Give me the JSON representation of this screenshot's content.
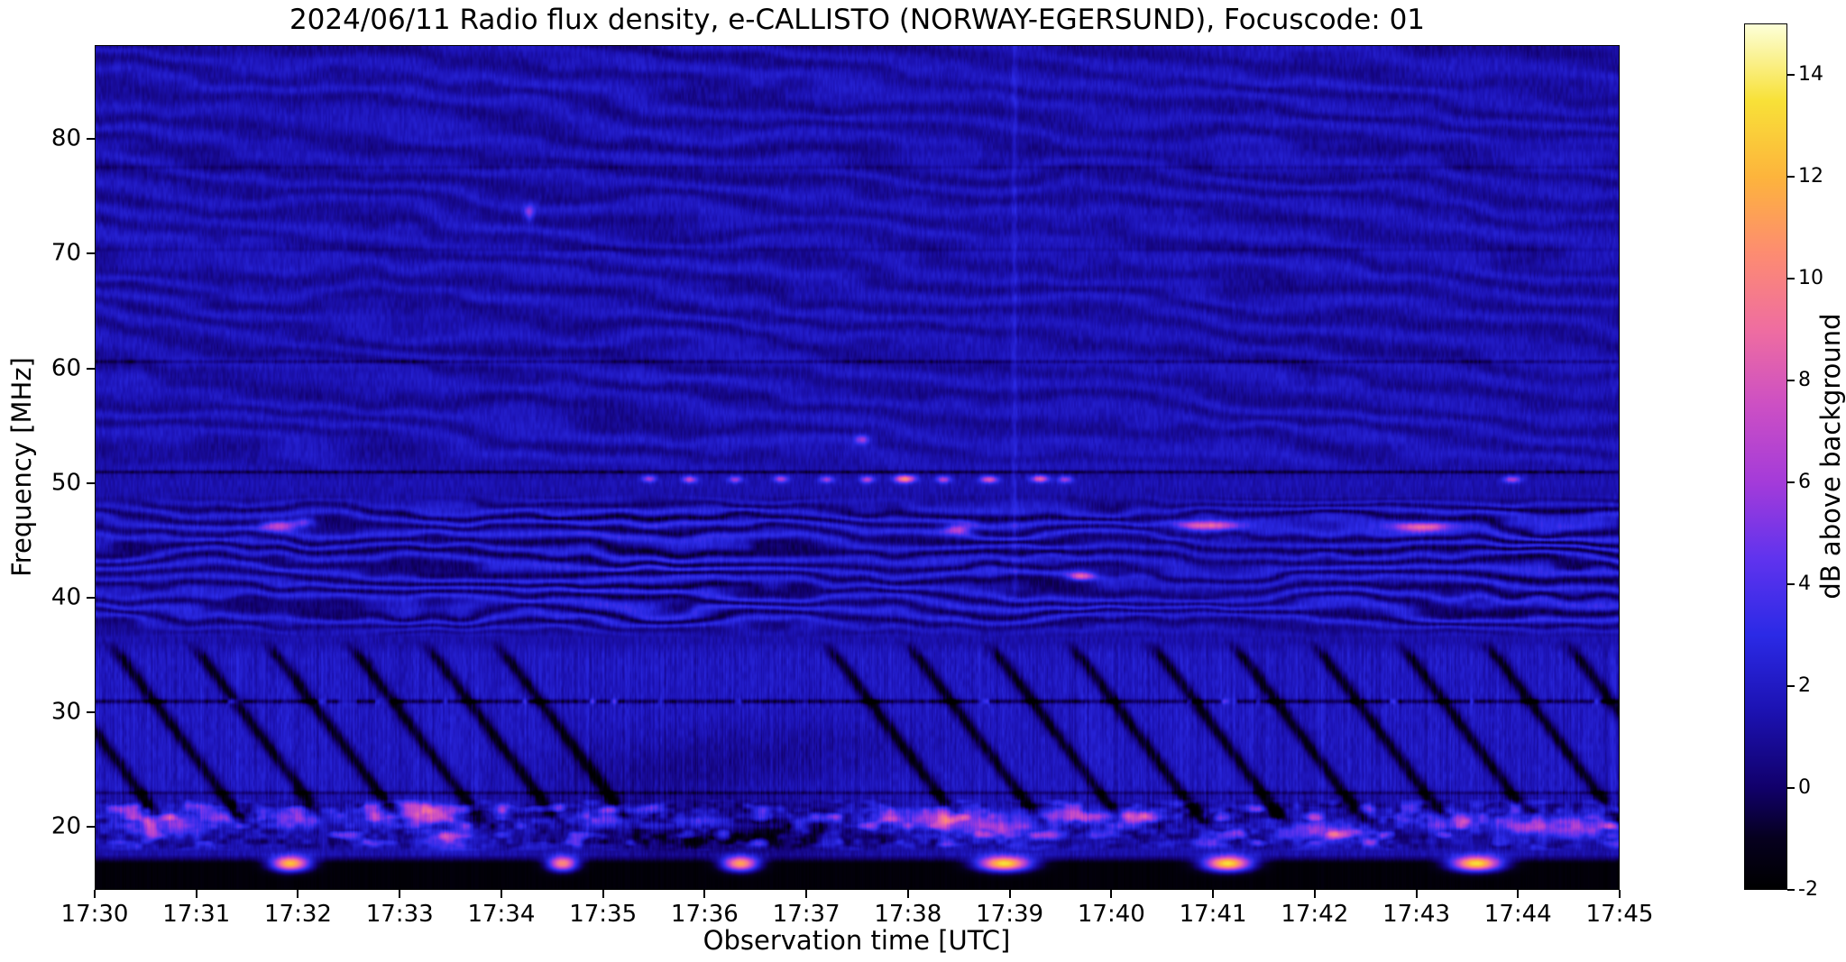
{
  "chart_data": {
    "type": "heatmap",
    "title": "2024/06/11  Radio flux density, e-CALLISTO (NORWAY-EGERSUND), Focuscode: 01",
    "xlabel": "Observation time [UTC]",
    "ylabel": "Frequency [MHz]",
    "x_tick_labels": [
      "17:30",
      "17:31",
      "17:32",
      "17:33",
      "17:34",
      "17:35",
      "17:36",
      "17:37",
      "17:38",
      "17:39",
      "17:40",
      "17:41",
      "17:42",
      "17:43",
      "17:44",
      "17:45"
    ],
    "x_range_minutes": [
      0,
      15
    ],
    "y_tick_values_mhz": [
      20,
      30,
      40,
      50,
      60,
      70,
      80
    ],
    "y_range_mhz": [
      14.5,
      88.2
    ],
    "grid": false,
    "colorbar": {
      "label": "dB above background",
      "tick_values": [
        14,
        12,
        10,
        8,
        6,
        4,
        2,
        0,
        -2
      ],
      "vmin": -2,
      "vmax": 15,
      "colormap": "gnuplot2-like",
      "stops": [
        [
          -2,
          "#000000"
        ],
        [
          -1,
          "#06001f"
        ],
        [
          0,
          "#11006b"
        ],
        [
          1.5,
          "#1c12b2"
        ],
        [
          3,
          "#2b2ae6"
        ],
        [
          4.5,
          "#6033ee"
        ],
        [
          6,
          "#a43bd9"
        ],
        [
          7.5,
          "#cc4fc4"
        ],
        [
          9,
          "#ef6da0"
        ],
        [
          10.5,
          "#fd8c71"
        ],
        [
          12,
          "#fdb43c"
        ],
        [
          13.5,
          "#f8e138"
        ],
        [
          15,
          "#fcffd8"
        ]
      ]
    },
    "spectrogram_model": {
      "base_level_db": 1.35,
      "grain_amp": 0.9,
      "band_bright": {
        "f_lo": 22.6,
        "f_hi": 36.0,
        "add": 0.55
      },
      "low_band": {
        "f_lo": 17.8,
        "f_hi": 22.4,
        "base_add": -0.35,
        "blotch_threshold": 0.52,
        "blotch_gain": 9,
        "dark_mod": 2.5
      },
      "stripe_amp": 1.0,
      "stripe_band_top_mhz": 36.5,
      "row_texture_amp": 0.45,
      "dark_lines": [
        {
          "f": 60.6,
          "w": 0.18,
          "depth": 1.5
        },
        {
          "f": 50.95,
          "w": 0.16,
          "depth": 2.2
        },
        {
          "f": 30.9,
          "w": 0.2,
          "depth": 2.8
        },
        {
          "f": 22.9,
          "w": 0.16,
          "depth": 1.6
        },
        {
          "f": 77.6,
          "w": 0.2,
          "depth": 0.7
        },
        {
          "f": 70.4,
          "w": 0.2,
          "depth": 0.6
        }
      ],
      "fringe_low": {
        "f_lo": 36.5,
        "f_hi": 49.0,
        "amp": 1.9,
        "k_f": 5.2,
        "k_t": 1.1,
        "wobble": 9
      },
      "fringe_high": {
        "f_lo": 50.5,
        "amp": 0.7,
        "k_f": 2.6,
        "k_t": 2.2,
        "wobble": 7
      },
      "streaks": {
        "slope_mhz_per_min": 12,
        "depth": 3.0,
        "sigma_min": 0.055,
        "f_lo": 19.5,
        "f_hi": 36.3,
        "t0_at_30mhz": [
          -0.15,
          0.65,
          1.45,
          2.2,
          3.0,
          3.75,
          4.45,
          7.7,
          8.5,
          9.3,
          10.1,
          10.9,
          11.7,
          12.5,
          13.35,
          14.2,
          15.0
        ]
      },
      "line_dots_30mhz": {
        "f": 30.9,
        "threshold": 0.8,
        "gain": 28,
        "sigma_f": 0.22
      },
      "bright_blobs": [
        {
          "t": 5.45,
          "f": 50.35,
          "v": 4.5,
          "st": 0.05,
          "sf": 0.22
        },
        {
          "t": 5.85,
          "f": 50.3,
          "v": 5.5,
          "st": 0.05,
          "sf": 0.22
        },
        {
          "t": 6.3,
          "f": 50.3,
          "v": 4.5,
          "st": 0.05,
          "sf": 0.22
        },
        {
          "t": 6.75,
          "f": 50.35,
          "v": 5.0,
          "st": 0.05,
          "sf": 0.22
        },
        {
          "t": 7.2,
          "f": 50.3,
          "v": 4.5,
          "st": 0.05,
          "sf": 0.22
        },
        {
          "t": 7.6,
          "f": 50.3,
          "v": 5.0,
          "st": 0.05,
          "sf": 0.22
        },
        {
          "t": 7.97,
          "f": 50.35,
          "v": 9.0,
          "st": 0.07,
          "sf": 0.24
        },
        {
          "t": 8.35,
          "f": 50.3,
          "v": 5.0,
          "st": 0.05,
          "sf": 0.22
        },
        {
          "t": 8.8,
          "f": 50.3,
          "v": 6.5,
          "st": 0.06,
          "sf": 0.22
        },
        {
          "t": 9.3,
          "f": 50.35,
          "v": 7.0,
          "st": 0.06,
          "sf": 0.22
        },
        {
          "t": 9.55,
          "f": 50.3,
          "v": 4.5,
          "st": 0.05,
          "sf": 0.22
        },
        {
          "t": 13.95,
          "f": 50.3,
          "v": 5.0,
          "st": 0.06,
          "sf": 0.22
        },
        {
          "t": 7.55,
          "f": 53.8,
          "v": 4.5,
          "st": 0.05,
          "sf": 0.3
        },
        {
          "t": 4.27,
          "f": 73.6,
          "v": 3.5,
          "st": 0.035,
          "sf": 0.55
        },
        {
          "t": 1.8,
          "f": 46.3,
          "v": 5.0,
          "st": 0.12,
          "sf": 0.35
        },
        {
          "t": 2.05,
          "f": 46.6,
          "v": 4.0,
          "st": 0.08,
          "sf": 0.3
        },
        {
          "t": 8.5,
          "f": 46.0,
          "v": 6.0,
          "st": 0.1,
          "sf": 0.3
        },
        {
          "t": 10.95,
          "f": 46.3,
          "v": 6.5,
          "st": 0.2,
          "sf": 0.28
        },
        {
          "t": 13.05,
          "f": 46.2,
          "v": 7.5,
          "st": 0.16,
          "sf": 0.3
        },
        {
          "t": 9.7,
          "f": 41.8,
          "v": 6.5,
          "st": 0.09,
          "sf": 0.25
        },
        {
          "t": 0.7,
          "f": 20.3,
          "v": 4.5,
          "st": 0.35,
          "sf": 0.8
        },
        {
          "t": 2.0,
          "f": 20.6,
          "v": 4.0,
          "st": 0.25,
          "sf": 0.6
        },
        {
          "t": 3.1,
          "f": 20.9,
          "v": 4.5,
          "st": 0.35,
          "sf": 0.7
        },
        {
          "t": 3.45,
          "f": 18.6,
          "v": 3.5,
          "st": 0.2,
          "sf": 0.5
        },
        {
          "t": 4.95,
          "f": 20.6,
          "v": 3.5,
          "st": 0.3,
          "sf": 0.6
        },
        {
          "t": 6.0,
          "f": 20.4,
          "v": 4.0,
          "st": 0.25,
          "sf": 0.6
        },
        {
          "t": 8.35,
          "f": 20.6,
          "v": 5.5,
          "st": 0.45,
          "sf": 0.7
        },
        {
          "t": 9.0,
          "f": 19.6,
          "v": 4.0,
          "st": 0.25,
          "sf": 0.6
        },
        {
          "t": 9.55,
          "f": 20.9,
          "v": 4.5,
          "st": 0.2,
          "sf": 0.5
        },
        {
          "t": 10.15,
          "f": 20.9,
          "v": 3.5,
          "st": 0.25,
          "sf": 0.5
        },
        {
          "t": 12.05,
          "f": 19.6,
          "v": 4.5,
          "st": 0.3,
          "sf": 0.6
        },
        {
          "t": 13.4,
          "f": 20.4,
          "v": 4.0,
          "st": 0.3,
          "sf": 0.6
        },
        {
          "t": 14.55,
          "f": 19.9,
          "v": 5.0,
          "st": 0.35,
          "sf": 0.7
        }
      ],
      "dark_blobs": [
        {
          "t": 6.2,
          "f": 19.3,
          "v": -2.2,
          "st": 0.8,
          "sf": 1.2
        },
        {
          "t": 5.6,
          "f": 24.5,
          "v": -1.0,
          "st": 0.9,
          "sf": 2.0
        },
        {
          "t": 7.0,
          "f": 27.0,
          "v": -0.8,
          "st": 0.8,
          "sf": 2.0
        }
      ],
      "floor": {
        "f_top": 17.5,
        "level": -1.7
      },
      "bottom_bursts": [
        {
          "t": 1.92,
          "v": 14,
          "st": 0.13
        },
        {
          "t": 4.6,
          "v": 12,
          "st": 0.1
        },
        {
          "t": 6.35,
          "v": 13,
          "st": 0.12
        },
        {
          "t": 8.95,
          "v": 15,
          "st": 0.18
        },
        {
          "t": 11.15,
          "v": 15,
          "st": 0.16
        },
        {
          "t": 13.6,
          "v": 15,
          "st": 0.17
        }
      ],
      "burst_f": 16.7,
      "burst_sf": 0.45,
      "vertical_lines": [
        {
          "t": 9.05,
          "f_lo": 40,
          "f_hi": 88.2,
          "amp": 0.9,
          "st": 0.018
        }
      ]
    }
  }
}
